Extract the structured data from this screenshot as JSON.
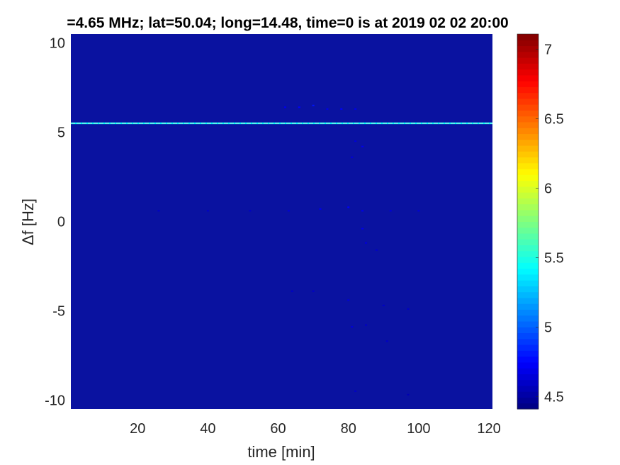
{
  "chart_data": {
    "type": "heatmap",
    "title": "=4.65 MHz;  lat=50.04; long=14.48, time=0 is at 2019 02 02 20:00",
    "xlabel": "time [min]",
    "ylabel": "Δf [Hz]",
    "xlim": [
      1,
      121
    ],
    "ylim": [
      -10.5,
      10.5
    ],
    "xticks": [
      20,
      40,
      60,
      80,
      100,
      120
    ],
    "yticks": [
      10,
      5,
      0,
      -5,
      -10
    ],
    "colormap": "jet",
    "clim": [
      4.41,
      7.11
    ],
    "colorbar_ticks": [
      7,
      6.5,
      6,
      5.5,
      5,
      4.5
    ],
    "background_value": 4.45,
    "lines": [
      {
        "df": 5.5,
        "t_start": 1,
        "t_end": 121,
        "value": 5.4
      }
    ],
    "spots": [
      {
        "t": 62,
        "df": 6.4,
        "value": 4.7
      },
      {
        "t": 66,
        "df": 6.4,
        "value": 4.75
      },
      {
        "t": 70,
        "df": 6.5,
        "value": 4.8
      },
      {
        "t": 74,
        "df": 6.3,
        "value": 4.7
      },
      {
        "t": 78,
        "df": 6.3,
        "value": 4.75
      },
      {
        "t": 82,
        "df": 6.3,
        "value": 4.7
      },
      {
        "t": 82,
        "df": 4.5,
        "value": 4.65
      },
      {
        "t": 84,
        "df": 4.2,
        "value": 4.7
      },
      {
        "t": 81,
        "df": 3.6,
        "value": 4.65
      },
      {
        "t": 26,
        "df": 0.6,
        "value": 4.6
      },
      {
        "t": 40,
        "df": 0.6,
        "value": 4.6
      },
      {
        "t": 52,
        "df": 0.6,
        "value": 4.6
      },
      {
        "t": 63,
        "df": 0.6,
        "value": 4.65
      },
      {
        "t": 72,
        "df": 0.7,
        "value": 4.7
      },
      {
        "t": 80,
        "df": 0.8,
        "value": 4.75
      },
      {
        "t": 84,
        "df": 0.6,
        "value": 4.7
      },
      {
        "t": 92,
        "df": 0.6,
        "value": 4.65
      },
      {
        "t": 100,
        "df": 0.6,
        "value": 4.65
      },
      {
        "t": 84,
        "df": -0.4,
        "value": 4.7
      },
      {
        "t": 85,
        "df": -1.2,
        "value": 4.65
      },
      {
        "t": 88,
        "df": -1.6,
        "value": 4.6
      },
      {
        "t": 64,
        "df": -3.9,
        "value": 4.6
      },
      {
        "t": 70,
        "df": -3.9,
        "value": 4.6
      },
      {
        "t": 80,
        "df": -4.4,
        "value": 4.65
      },
      {
        "t": 90,
        "df": -4.7,
        "value": 4.6
      },
      {
        "t": 97,
        "df": -4.9,
        "value": 4.6
      },
      {
        "t": 81,
        "df": -5.9,
        "value": 4.65
      },
      {
        "t": 85,
        "df": -5.8,
        "value": 4.6
      },
      {
        "t": 91,
        "df": -6.7,
        "value": 4.6
      },
      {
        "t": 82,
        "df": -9.5,
        "value": 4.6
      },
      {
        "t": 97,
        "df": -9.7,
        "value": 4.55
      }
    ]
  }
}
